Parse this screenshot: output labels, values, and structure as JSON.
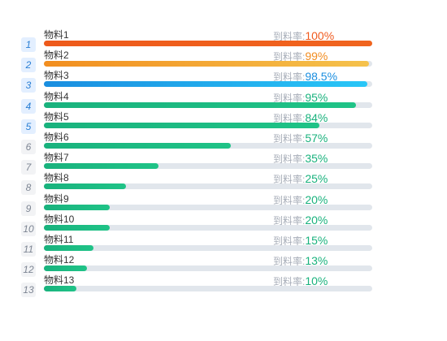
{
  "rate_label": "到料率:",
  "colors": {
    "rank1_bar": [
      "#ee5a1b",
      "#f0641e"
    ],
    "rank2_bar": [
      "#f28e1f",
      "#f5c24c"
    ],
    "rank3_bar": [
      "#1a8ee0",
      "#29c6f7"
    ],
    "default_bar": [
      "#19b27d",
      "#1fc387"
    ],
    "rank1_value": "#f05a1e",
    "rank2_value": "#f28c1f",
    "rank3_value": "#1a8ee0",
    "default_value": "#19b27d"
  },
  "items": [
    {
      "rank": "1",
      "name": "物料1",
      "value_text": "100%",
      "fraction": 1.0
    },
    {
      "rank": "2",
      "name": "物料2",
      "value_text": "99%",
      "fraction": 0.99
    },
    {
      "rank": "3",
      "name": "物料3",
      "value_text": "98.5%",
      "fraction": 0.985
    },
    {
      "rank": "4",
      "name": "物料4",
      "value_text": "95%",
      "fraction": 0.95
    },
    {
      "rank": "5",
      "name": "物料5",
      "value_text": "84%",
      "fraction": 0.84
    },
    {
      "rank": "6",
      "name": "物料6",
      "value_text": "57%",
      "fraction": 0.57
    },
    {
      "rank": "7",
      "name": "物料7",
      "value_text": "35%",
      "fraction": 0.35
    },
    {
      "rank": "8",
      "name": "物料8",
      "value_text": "25%",
      "fraction": 0.25
    },
    {
      "rank": "9",
      "name": "物料9",
      "value_text": "20%",
      "fraction": 0.2
    },
    {
      "rank": "10",
      "name": "物料10",
      "value_text": "20%",
      "fraction": 0.2
    },
    {
      "rank": "11",
      "name": "物料11",
      "value_text": "15%",
      "fraction": 0.15
    },
    {
      "rank": "12",
      "name": "物料12",
      "value_text": "13%",
      "fraction": 0.13
    },
    {
      "rank": "13",
      "name": "物料13",
      "value_text": "10%",
      "fraction": 0.1
    }
  ]
}
